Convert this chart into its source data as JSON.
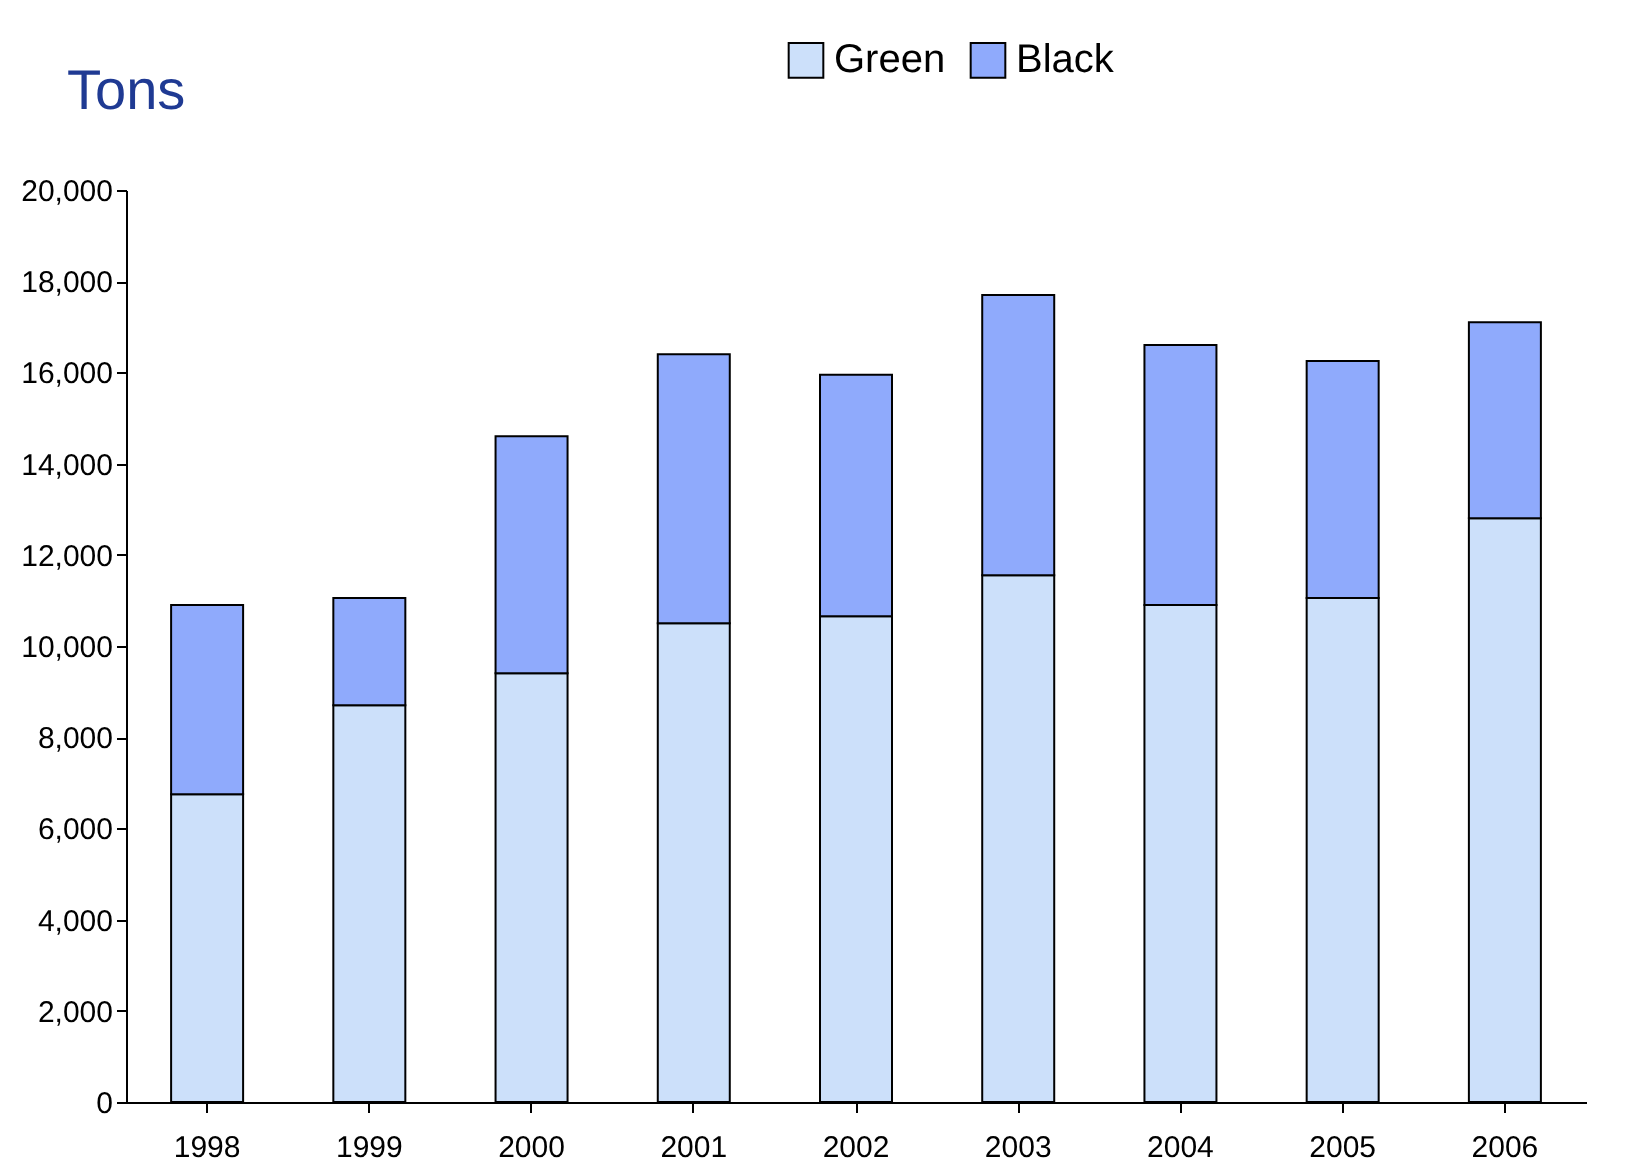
{
  "chart_data": {
    "type": "bar",
    "stacked": true,
    "ylabel": "Tons",
    "categories": [
      "1998",
      "1999",
      "2000",
      "2001",
      "2002",
      "2003",
      "2004",
      "2005",
      "2006"
    ],
    "series": [
      {
        "name": "Green",
        "color": "#cce0fa",
        "values": [
          6750,
          8700,
          9400,
          10500,
          10650,
          11550,
          10900,
          11050,
          12800
        ]
      },
      {
        "name": "Black",
        "color": "#8faafc",
        "values": [
          4150,
          2350,
          5200,
          5900,
          5300,
          6150,
          5700,
          5200,
          4300
        ]
      }
    ],
    "ylim": [
      0,
      20000
    ],
    "yticks": [
      0,
      {
        "value": 2000,
        "label": "2,000"
      },
      {
        "value": 4000,
        "label": "4,000"
      },
      {
        "value": 6000,
        "label": "6,000"
      },
      {
        "value": 8000,
        "label": "8,000"
      },
      {
        "value": 10000,
        "label": "10,000"
      },
      {
        "value": 12000,
        "label": "12,000"
      },
      {
        "value": 14000,
        "label": "14,000"
      },
      {
        "value": 16000,
        "label": "16,000"
      },
      {
        "value": 18000,
        "label": "18,000"
      },
      {
        "value": 20000,
        "label": "20,000"
      }
    ],
    "grid": false,
    "legend": "top"
  }
}
